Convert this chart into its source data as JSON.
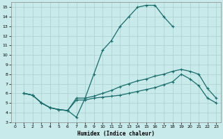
{
  "xlabel": "Humidex (Indice chaleur)",
  "bg_color": "#c8eaea",
  "grid_color": "#a8d0d0",
  "line_color": "#1a6b6b",
  "xlim": [
    -0.5,
    23.5
  ],
  "ylim": [
    3,
    15.5
  ],
  "xticks": [
    0,
    1,
    2,
    3,
    4,
    5,
    6,
    7,
    8,
    9,
    10,
    11,
    12,
    13,
    14,
    15,
    16,
    17,
    18,
    19,
    20,
    21,
    22,
    23
  ],
  "yticks": [
    3,
    4,
    5,
    6,
    7,
    8,
    9,
    10,
    11,
    12,
    13,
    14,
    15
  ],
  "curve1_x": [
    1,
    2,
    3,
    4,
    5,
    6,
    7,
    8,
    9,
    10,
    11,
    12,
    13,
    14,
    15,
    16,
    17,
    18
  ],
  "curve1_y": [
    6,
    5.8,
    5.0,
    4.5,
    4.3,
    4.2,
    3.5,
    5.5,
    8.0,
    10.5,
    11.5,
    13.0,
    14.0,
    15.0,
    15.2,
    15.2,
    14.0,
    13.0
  ],
  "curve2_x": [
    1,
    2,
    3,
    4,
    5,
    6,
    7,
    8,
    9,
    10,
    11,
    12,
    13,
    14,
    15,
    16,
    17,
    18,
    19,
    20,
    21,
    22,
    23
  ],
  "curve2_y": [
    6.0,
    5.8,
    5.0,
    4.5,
    4.3,
    4.2,
    5.5,
    5.5,
    5.7,
    6.0,
    6.3,
    6.7,
    7.0,
    7.3,
    7.5,
    7.8,
    8.0,
    8.3,
    8.5,
    8.3,
    8.0,
    6.5,
    5.5
  ],
  "curve3_x": [
    1,
    2,
    3,
    4,
    5,
    6,
    7,
    8,
    9,
    10,
    11,
    12,
    13,
    14,
    15,
    16,
    17,
    18,
    19,
    20,
    21,
    22,
    23
  ],
  "curve3_y": [
    6.0,
    5.8,
    5.0,
    4.5,
    4.3,
    4.2,
    5.3,
    5.3,
    5.5,
    5.6,
    5.7,
    5.8,
    6.0,
    6.2,
    6.4,
    6.6,
    6.9,
    7.2,
    8.0,
    7.5,
    6.8,
    5.5,
    5.0
  ]
}
